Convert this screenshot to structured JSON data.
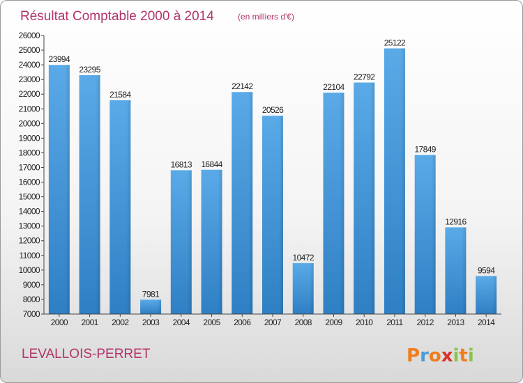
{
  "chart_data": {
    "type": "bar",
    "title": "Résultat Comptable 2000 à 2014",
    "subtitle": "(en milliers d'€)",
    "categories": [
      "2000",
      "2001",
      "2002",
      "2003",
      "2004",
      "2005",
      "2006",
      "2007",
      "2008",
      "2009",
      "2010",
      "2011",
      "2012",
      "2013",
      "2014"
    ],
    "values": [
      23994,
      23295,
      21584,
      7981,
      16813,
      16844,
      22142,
      20526,
      10472,
      22104,
      22792,
      25122,
      17849,
      12916,
      9594
    ],
    "xlabel": "",
    "ylabel": "",
    "ylim": [
      7000,
      26000
    ],
    "ystep": 1000,
    "grid": false,
    "bar_color": "#4f9fe0"
  },
  "location": "LEVALLOIS-PERRET",
  "logo": {
    "letters": [
      "P",
      "r",
      "o",
      "x",
      "i",
      "t",
      "i"
    ],
    "colors": [
      "#f07d1a",
      "#4a9ad6",
      "#f07d1a",
      "#d9322a",
      "#8bc34a",
      "#f07d1a",
      "#8bc34a"
    ]
  }
}
